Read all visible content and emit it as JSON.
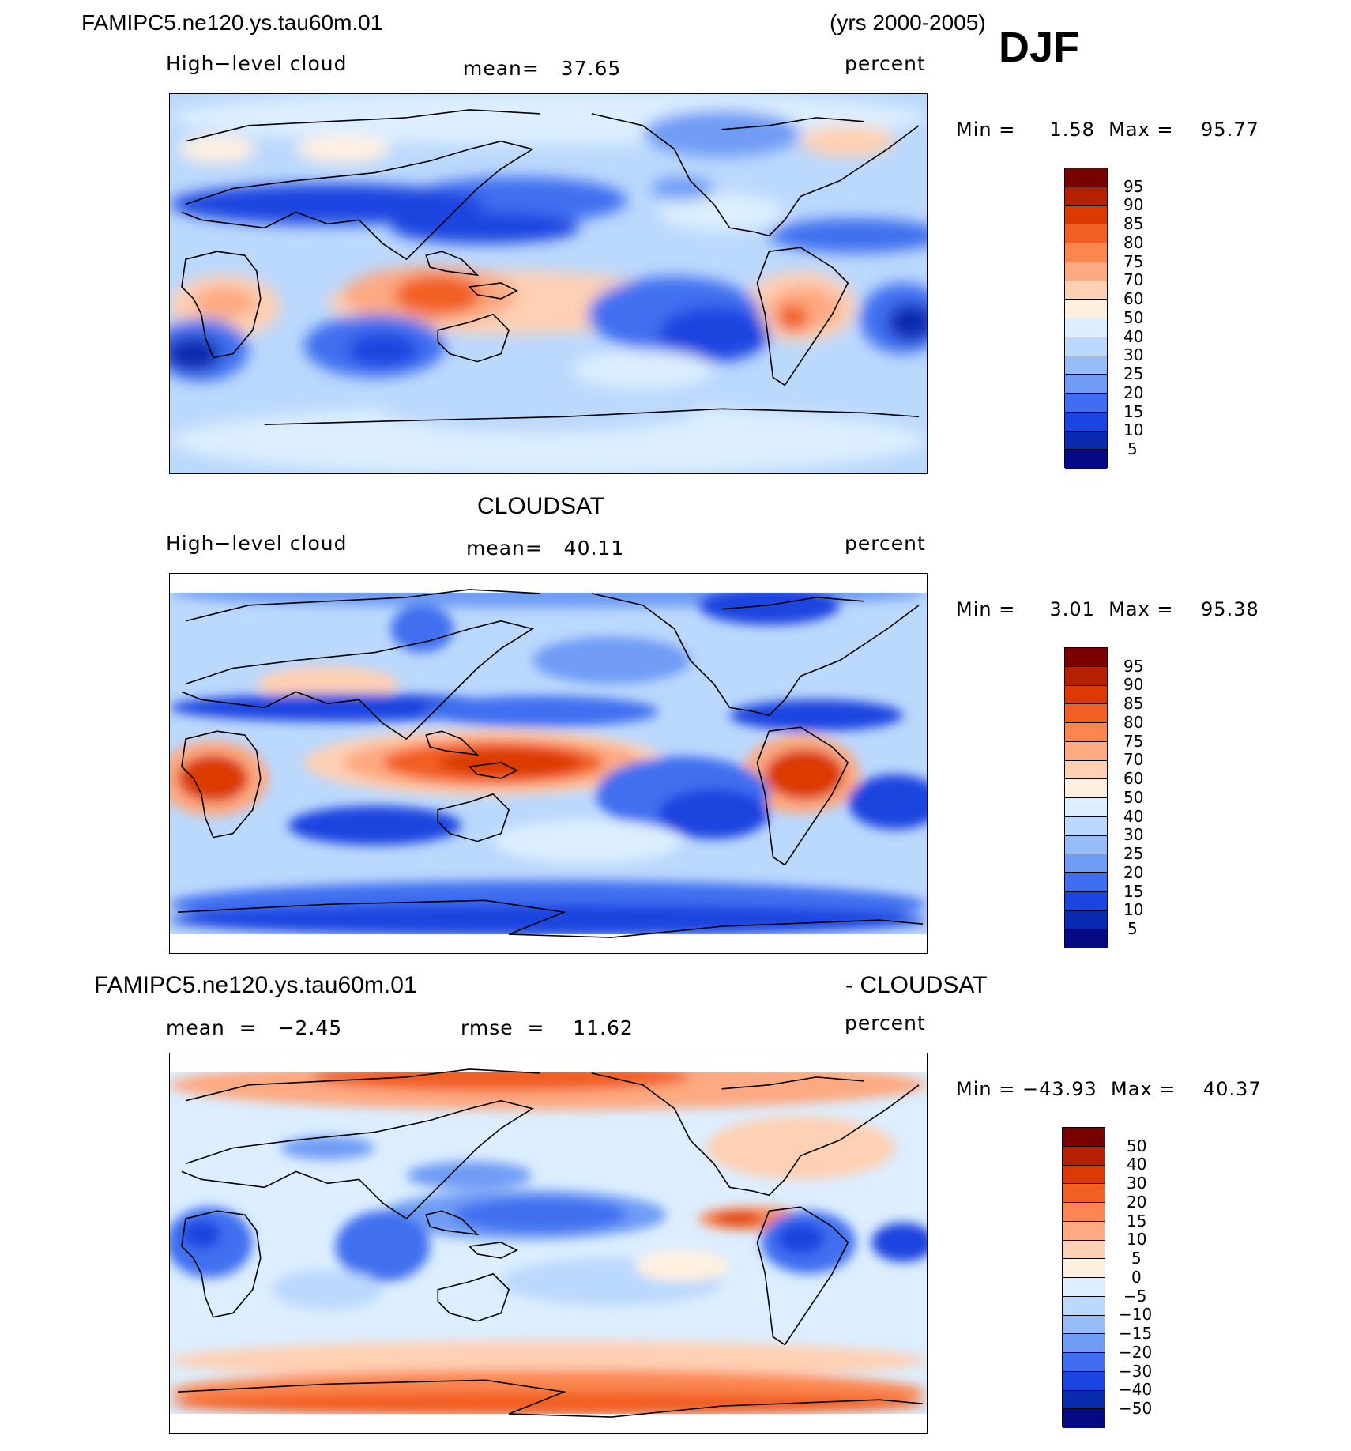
{
  "header": {
    "case_name": "FAMIPC5.ne120.ys.tau60m.01",
    "years": "(yrs 2000-2005)",
    "season": "DJF"
  },
  "panels": [
    {
      "id": "model",
      "title": "",
      "left_label": "High−level cloud",
      "center_label": "mean=   37.65",
      "right_label": "percent",
      "minmax": "Min =     1.58  Max =    95.77",
      "legend_values": [
        "95",
        "90",
        "85",
        "80",
        "75",
        "70",
        "60",
        "50",
        "40",
        "30",
        "25",
        "20",
        "15",
        "10",
        "5"
      ]
    },
    {
      "id": "obs",
      "title": "CLOUDSAT",
      "left_label": "High−level cloud",
      "center_label": "mean=   40.11",
      "right_label": "percent",
      "minmax": "Min =     3.01  Max =    95.38",
      "legend_values": [
        "95",
        "90",
        "85",
        "80",
        "75",
        "70",
        "60",
        "50",
        "40",
        "30",
        "25",
        "20",
        "15",
        "10",
        "5"
      ]
    },
    {
      "id": "diff",
      "title_left": "FAMIPC5.ne120.ys.tau60m.01",
      "title_right": "- CLOUDSAT",
      "left_label": "mean  =   −2.45",
      "center_label": "rmse  =    11.62",
      "right_label": "percent",
      "minmax": "Min = −43.93  Max =    40.37",
      "legend_values": [
        "50",
        "40",
        "30",
        "20",
        "15",
        "10",
        "5",
        "0",
        "−5",
        "−10",
        "−15",
        "−20",
        "−30",
        "−40",
        "−50"
      ]
    }
  ],
  "colors": {
    "abs_scale": [
      "#7a0000",
      "#b52000",
      "#dc3a05",
      "#f25f22",
      "#fb8650",
      "#fda981",
      "#fed0b4",
      "#fff0e0",
      "#dceeff",
      "#bbd8fd",
      "#97bdf9",
      "#6f9cf5",
      "#3f6ff0",
      "#1a45e0",
      "#0a2ab0",
      "#050a84"
    ],
    "diff_scale": [
      "#7a0000",
      "#b52000",
      "#dc3a05",
      "#f25f22",
      "#fb8650",
      "#fda981",
      "#fed0b4",
      "#fff0e0",
      "#dceeff",
      "#bbd8fd",
      "#97bdf9",
      "#6f9cf5",
      "#3f6ff0",
      "#1a45e0",
      "#0a2ab0",
      "#050a84"
    ]
  }
}
